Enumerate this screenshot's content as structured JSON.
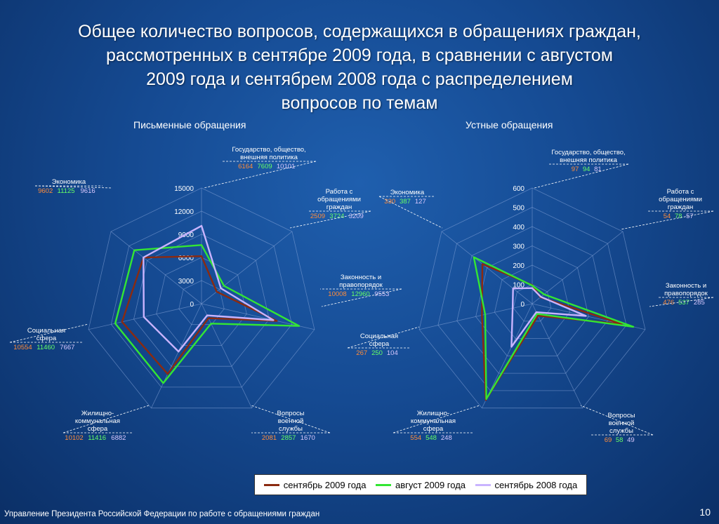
{
  "title_lines": [
    "Общее количество вопросов, содержащихся в обращениях граждан,",
    "рассмотренных в сентябре 2009 года, в сравнении с августом",
    "2009 года и сентябрем 2008 года с распределением",
    "вопросов по темам"
  ],
  "footer": "Управление Президента Российской Федерации по работе с обращениями граждан",
  "page_number": "10",
  "colors": {
    "s1": "#8b2a10",
    "s2": "#33e633",
    "s3": "#c9b4ff",
    "v1": "#ff8c3a",
    "v2": "#66ff66",
    "v3": "#d9c8ff"
  },
  "chart_data": [
    {
      "type": "radar",
      "title": "Письменные обращения",
      "rlim": [
        0,
        15000
      ],
      "ticks": [
        "0",
        "3000",
        "6000",
        "9000",
        "12000",
        "15000"
      ],
      "categories": [
        "Государство, общество, внешняя политика",
        "Работа с обращениями граждан",
        "Законность и правопорядок",
        "Вопросы военной службы",
        "Жилищно-коммунальная сфера",
        "Социальная сфера",
        "Экономика"
      ],
      "category_lines": [
        [
          "Государство, общество,",
          "внешняя политика"
        ],
        [
          "Работа с",
          "обращениями",
          "граждан"
        ],
        [
          "Законность и",
          "правопорядок"
        ],
        [
          "Вопросы",
          "военной",
          "службы"
        ],
        [
          "Жилищно-",
          "коммунальная",
          "сфера"
        ],
        [
          "Социальная",
          "сфера"
        ],
        [
          "Экономика"
        ]
      ],
      "series": [
        {
          "name": "сентябрь 2009 года",
          "values": [
            6164,
            2509,
            10008,
            2081,
            10102,
            10554,
            9602
          ],
          "labels": [
            "6164",
            "2509",
            "10008",
            "2081",
            "10102",
            "10554",
            "9602"
          ]
        },
        {
          "name": "август 2009 года",
          "values": [
            7609,
            3724,
            12960,
            2857,
            11416,
            11460,
            11125
          ],
          "labels": [
            "7609",
            "3724",
            "12960",
            "2857",
            "11416",
            "11460",
            "11125"
          ]
        },
        {
          "name": "сентябрь 2008 года",
          "values": [
            10101,
            3209,
            9553,
            1670,
            6882,
            7667,
            9616
          ],
          "labels": [
            "10101",
            "3209",
            "9553",
            "1670",
            "6882",
            "7667",
            "9616"
          ]
        }
      ]
    },
    {
      "type": "radar",
      "title": "Устные обращения",
      "rlim": [
        0,
        600
      ],
      "ticks": [
        "0",
        "100",
        "200",
        "300",
        "400",
        "500",
        "600"
      ],
      "categories": [
        "Государство, общество, внешняя политика",
        "Работа с обращениями граждан",
        "Законность и правопорядок",
        "Вопросы военной службы",
        "Жилищно-коммунальная сфера",
        "Социальная сфера",
        "Экономика"
      ],
      "category_lines": [
        [
          "Государство, общество,",
          "внешняя политика"
        ],
        [
          "Работа с",
          "обращениями",
          "граждан"
        ],
        [
          "Законность и",
          "правопорядок"
        ],
        [
          "Вопросы",
          "военной",
          "службы"
        ],
        [
          "Жилищно-",
          "коммунальная",
          "сфера"
        ],
        [
          "Социальная",
          "сфера"
        ],
        [
          "Экономика"
        ]
      ],
      "series": [
        {
          "name": "сентябрь 2009 года",
          "values": [
            97,
            54,
            476,
            69,
            554,
            267,
            330
          ],
          "labels": [
            "97",
            "54",
            "476",
            "69",
            "554",
            "267",
            "330"
          ]
        },
        {
          "name": "август 2009 года",
          "values": [
            94,
            78,
            537,
            58,
            548,
            250,
            387
          ],
          "labels": [
            "94",
            "78",
            "537",
            "58",
            "548",
            "250",
            "387"
          ]
        },
        {
          "name": "сентябрь 2008 года",
          "values": [
            81,
            57,
            285,
            49,
            248,
            104,
            127
          ],
          "labels": [
            "81",
            "57",
            "285",
            "49",
            "248",
            "104",
            "127"
          ]
        }
      ]
    }
  ]
}
